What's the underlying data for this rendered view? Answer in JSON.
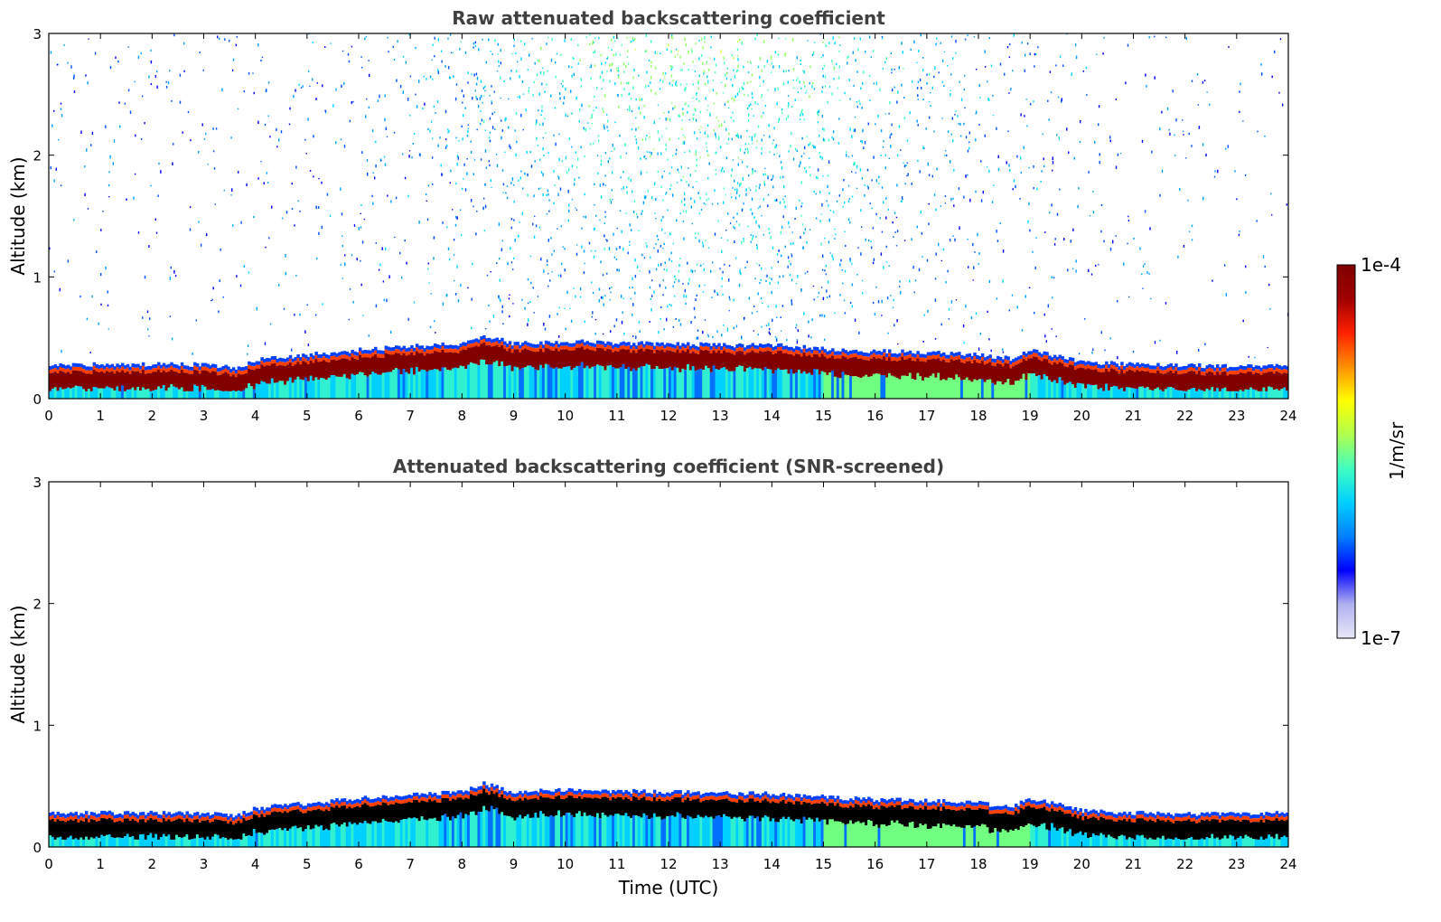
{
  "chart_data": [
    {
      "type": "heatmap",
      "title": "Raw attenuated backscattering coefficient",
      "xlabel": "",
      "ylabel": "Altitude (km)",
      "xlim": [
        0,
        24
      ],
      "ylim": [
        0,
        3
      ],
      "x_ticks": [
        "0",
        "1",
        "2",
        "3",
        "4",
        "5",
        "6",
        "7",
        "8",
        "9",
        "10",
        "11",
        "12",
        "13",
        "14",
        "15",
        "16",
        "17",
        "18",
        "19",
        "20",
        "21",
        "22",
        "23",
        "24"
      ],
      "y_ticks": [
        "0",
        "1",
        "2",
        "3"
      ],
      "aerosol_layer_top_km": {
        "hours": [
          0,
          2,
          3,
          3.6,
          4,
          5,
          6,
          7,
          8,
          8.4,
          9,
          10,
          11,
          12,
          13,
          14,
          15,
          16,
          17,
          18,
          18.6,
          19,
          20,
          21,
          22,
          23,
          24
        ],
        "values": [
          0.28,
          0.28,
          0.28,
          0.25,
          0.32,
          0.36,
          0.4,
          0.43,
          0.45,
          0.52,
          0.45,
          0.47,
          0.46,
          0.45,
          0.44,
          0.44,
          0.41,
          0.39,
          0.38,
          0.36,
          0.33,
          0.4,
          0.3,
          0.28,
          0.27,
          0.27,
          0.28
        ]
      },
      "noise_fraction": 1
    },
    {
      "type": "heatmap",
      "title": "Attenuated backscattering coefficient (SNR-screened)",
      "xlabel": "Time (UTC)",
      "ylabel": "Altitude (km)",
      "xlim": [
        0,
        24
      ],
      "ylim": [
        0,
        3
      ],
      "x_ticks": [
        "0",
        "1",
        "2",
        "3",
        "4",
        "5",
        "6",
        "7",
        "8",
        "9",
        "10",
        "11",
        "12",
        "13",
        "14",
        "15",
        "16",
        "17",
        "18",
        "19",
        "20",
        "21",
        "22",
        "23",
        "24"
      ],
      "y_ticks": [
        "0",
        "1",
        "2",
        "3"
      ],
      "aerosol_layer_top_km": {
        "hours": [
          0,
          2,
          3,
          3.6,
          4,
          5,
          6,
          7,
          8,
          8.4,
          9,
          10,
          11,
          12,
          13,
          14,
          15,
          16,
          17,
          18,
          18.6,
          19,
          20,
          21,
          22,
          23,
          24
        ],
        "values": [
          0.28,
          0.28,
          0.28,
          0.25,
          0.32,
          0.36,
          0.4,
          0.43,
          0.45,
          0.52,
          0.45,
          0.47,
          0.46,
          0.45,
          0.44,
          0.44,
          0.41,
          0.39,
          0.38,
          0.36,
          0.33,
          0.4,
          0.3,
          0.28,
          0.27,
          0.27,
          0.28
        ]
      },
      "noise_fraction": 0
    }
  ],
  "colorbar": {
    "max_label": "1e-4",
    "min_label": "1e-7",
    "unit_label": "1/m/sr",
    "scale": "log",
    "colors": [
      "#e8e8f8",
      "#b0b0f0",
      "#0000ff",
      "#0080ff",
      "#00d0ff",
      "#40ffc0",
      "#b0ff50",
      "#ffff00",
      "#ff9000",
      "#ff2000",
      "#a00000",
      "#800000"
    ]
  }
}
